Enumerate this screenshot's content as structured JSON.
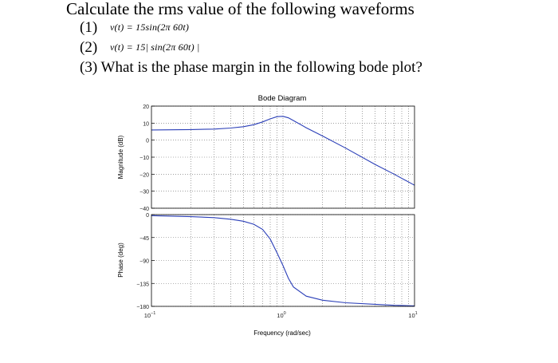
{
  "document": {
    "title": "Calculate the rms value of the following waveforms",
    "q1": {
      "number": "(1)",
      "equation": "v(t) = 15sin(2π 60t)"
    },
    "q2": {
      "number": "(2)",
      "equation": "v(t) = 15| sin(2π 60t) |"
    },
    "q3": {
      "text": "(3) What is the phase margin in the following bode plot?"
    }
  },
  "chart_data": [
    {
      "type": "line",
      "title": "Bode Diagram",
      "xlabel": "",
      "ylabel": "Magnitude (dB)",
      "xscale": "log",
      "xlim": [
        0.1,
        10
      ],
      "ylim": [
        -40,
        20
      ],
      "yticks": [
        20,
        10,
        0,
        -10,
        -20,
        -30,
        -40
      ],
      "grid": true,
      "series": [
        {
          "x": [
            0.1,
            0.2,
            0.3,
            0.4,
            0.5,
            0.6,
            0.7,
            0.8,
            0.9,
            1.0,
            1.1,
            1.2,
            1.5,
            2,
            3,
            5,
            7,
            10
          ],
          "y": [
            6.0,
            6.2,
            6.5,
            7.1,
            7.9,
            9.1,
            10.7,
            12.5,
            13.8,
            14.0,
            13.1,
            11.5,
            7.3,
            2.4,
            -4.7,
            -14.2,
            -20.0,
            -26.5
          ]
        }
      ]
    },
    {
      "type": "line",
      "xlabel": "Frequency (rad/sec)",
      "ylabel": "Phase (deg)",
      "xscale": "log",
      "xlim": [
        0.1,
        10
      ],
      "ylim": [
        -180,
        0
      ],
      "yticks": [
        0,
        -45,
        -90,
        -135,
        -180
      ],
      "xticks": [
        "10^-1",
        "10^0",
        "10^1"
      ],
      "grid": true,
      "series": [
        {
          "x": [
            0.1,
            0.2,
            0.3,
            0.4,
            0.5,
            0.6,
            0.7,
            0.8,
            0.9,
            1.0,
            1.1,
            1.2,
            1.5,
            2,
            3,
            5,
            7,
            10
          ],
          "y": [
            -2,
            -4,
            -6,
            -9,
            -13,
            -19,
            -29,
            -48,
            -75,
            -100,
            -125,
            -142,
            -160,
            -168,
            -173,
            -176,
            -178,
            -179
          ]
        }
      ]
    }
  ]
}
